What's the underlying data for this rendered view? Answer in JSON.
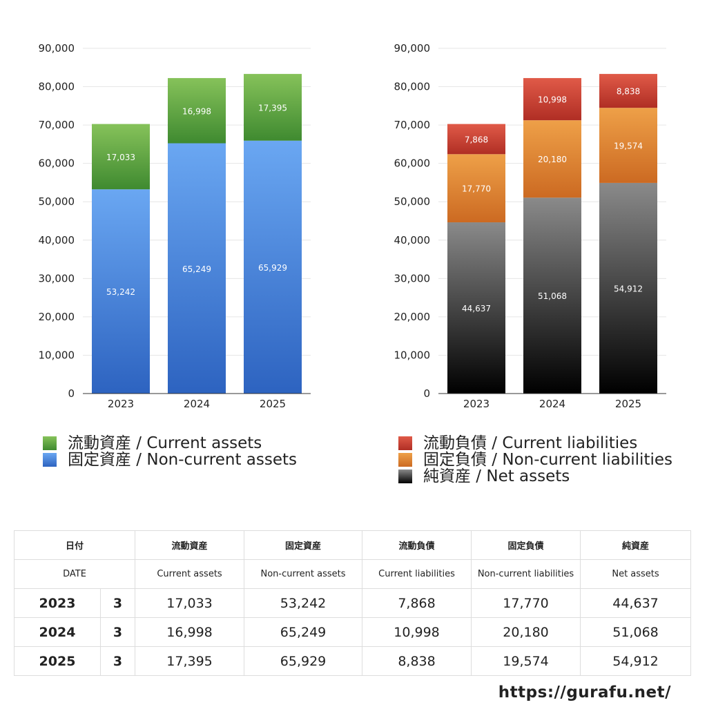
{
  "chart_data": [
    {
      "type": "bar",
      "stacked": true,
      "categories": [
        "2023",
        "2024",
        "2025"
      ],
      "ylim": [
        0,
        90000
      ],
      "yticks": [
        "0",
        "10,000",
        "20,000",
        "30,000",
        "40,000",
        "50,000",
        "60,000",
        "70,000",
        "80,000",
        "90,000"
      ],
      "grid": true,
      "series": [
        {
          "name": "固定資産 / Non-current assets",
          "values": [
            53242,
            65249,
            65929
          ],
          "labels": [
            "53,242",
            "65,249",
            "65,929"
          ],
          "color_top": "#6aa7f2",
          "color_bottom": "#2d63c0"
        },
        {
          "name": "流動資産 / Current assets",
          "values": [
            17033,
            16998,
            17395
          ],
          "labels": [
            "17,033",
            "16,998",
            "17,395"
          ],
          "color_top": "#86c25a",
          "color_bottom": "#3f8a30"
        }
      ]
    },
    {
      "type": "bar",
      "stacked": true,
      "categories": [
        "2023",
        "2024",
        "2025"
      ],
      "ylim": [
        0,
        90000
      ],
      "yticks": [
        "0",
        "10,000",
        "20,000",
        "30,000",
        "40,000",
        "50,000",
        "60,000",
        "70,000",
        "80,000",
        "90,000"
      ],
      "grid": true,
      "series": [
        {
          "name": "純資産 / Net assets",
          "values": [
            44637,
            51068,
            54912
          ],
          "labels": [
            "44,637",
            "51,068",
            "54,912"
          ],
          "color_top": "#8a8a8a",
          "color_bottom": "#000000"
        },
        {
          "name": "固定負債 / Non-current liabilities",
          "values": [
            17770,
            20180,
            19574
          ],
          "labels": [
            "17,770",
            "20,180",
            "19,574"
          ],
          "color_top": "#eea048",
          "color_bottom": "#cc6a22"
        },
        {
          "name": "流動負債 / Current liabilities",
          "values": [
            7868,
            10998,
            8838
          ],
          "labels": [
            "7,868",
            "10,998",
            "8,838"
          ],
          "color_top": "#e05a48",
          "color_bottom": "#b02e24"
        }
      ]
    }
  ],
  "legend_left": [
    {
      "label": "流動資産 / Current assets",
      "color": "#5aa63c"
    },
    {
      "label": "固定資産 / Non-current assets",
      "color": "#4a86dc"
    }
  ],
  "legend_right": [
    {
      "label": "流動負債 / Current liabilities",
      "color": "#cc3f33"
    },
    {
      "label": "固定負債 / Non-current liabilities",
      "color": "#e0862f"
    },
    {
      "label": "純資産 / Net assets",
      "color": "#2a2a2a"
    }
  ],
  "table": {
    "header_jp": [
      "日付",
      "流動資産",
      "固定資産",
      "流動負債",
      "固定負債",
      "純資産"
    ],
    "header_en": [
      "DATE",
      "Current assets",
      "Non-current assets",
      "Current liabilities",
      "Non-current liabilities",
      "Net assets"
    ],
    "rows": [
      {
        "year": "2023",
        "month": "3",
        "cells": [
          "17,033",
          "53,242",
          "7,868",
          "17,770",
          "44,637"
        ]
      },
      {
        "year": "2024",
        "month": "3",
        "cells": [
          "16,998",
          "65,249",
          "10,998",
          "20,180",
          "51,068"
        ]
      },
      {
        "year": "2025",
        "month": "3",
        "cells": [
          "17,395",
          "65,929",
          "8,838",
          "19,574",
          "54,912"
        ]
      }
    ]
  },
  "site_url": "https://gurafu.net/"
}
